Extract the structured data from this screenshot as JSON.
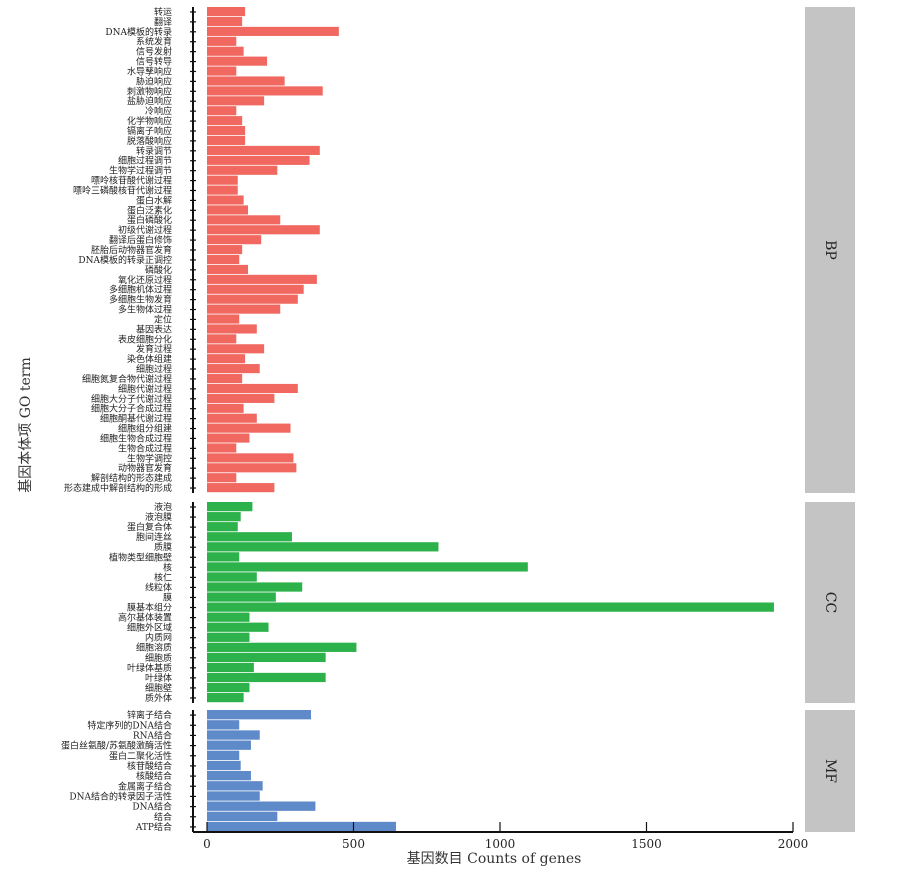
{
  "chart_data": {
    "type": "bar",
    "orientation": "horizontal",
    "xlabel": "基因数目 Counts of genes",
    "ylabel": "基因本体项 GO term",
    "xlim": [
      0,
      2000
    ],
    "xticks": [
      0,
      500,
      1000,
      1500,
      2000
    ],
    "grid": false,
    "legend": "none",
    "colors": {
      "BP": "#f06860",
      "CC": "#2db24b",
      "MF": "#5f8ac9",
      "strip": "#c4c4c4"
    },
    "facets": [
      {
        "name": "BP",
        "categories": [
          "转运",
          "翻译",
          "DNA模板的转录",
          "系统发育",
          "信号发射",
          "信号转导",
          "水导孳响应",
          "胁迫响应",
          "刺激物响应",
          "盐胁迫响应",
          "冷响应",
          "化学物响应",
          "镉离子响应",
          "脱落酸响应",
          "转录调节",
          "细胞过程调节",
          "生物学过程调节",
          "嘌呤核苷酸代谢过程",
          "嘌呤三磷酸核苷代谢过程",
          "蛋白水解",
          "蛋白泛素化",
          "蛋白磷酸化",
          "初级代谢过程",
          "翻译后蛋白修饰",
          "胚胎后动物器官发育",
          "DNA模板的转录正调控",
          "磷酸化",
          "氧化还原过程",
          "多细胞机体过程",
          "多细胞生物发育",
          "多生物体过程",
          "定位",
          "基因表达",
          "表皮细胞分化",
          "发育过程",
          "染色体组建",
          "细胞过程",
          "细胞氮复合物代谢过程",
          "细胞代谢过程",
          "细胞大分子代谢过程",
          "细胞大分子合成过程",
          "细胞酮基代谢过程",
          "细胞组分组建",
          "细胞生物合成过程",
          "生物合成过程",
          "生物学调控",
          "动物器官发育",
          "解剖结构的形态建成",
          "形态建成中解剖结构的形成"
        ],
        "values": [
          130,
          120,
          450,
          100,
          125,
          205,
          100,
          265,
          395,
          195,
          100,
          120,
          130,
          130,
          385,
          350,
          240,
          105,
          105,
          125,
          140,
          250,
          385,
          185,
          120,
          110,
          140,
          375,
          330,
          310,
          250,
          110,
          170,
          100,
          195,
          130,
          180,
          120,
          310,
          230,
          125,
          170,
          285,
          145,
          100,
          295,
          305,
          100,
          230
        ]
      },
      {
        "name": "CC",
        "categories": [
          "液泡",
          "液泡膜",
          "蛋白复合体",
          "胞间连丝",
          "质膜",
          "植物类型细胞壁",
          "核",
          "核仁",
          "线粒体",
          "膜",
          "膜基本组分",
          "高尔基体装置",
          "细胞外区域",
          "内质网",
          "细胞溶质",
          "细胞质",
          "叶绿体基质",
          "叶绿体",
          "细胞壁",
          "质外体"
        ],
        "values": [
          155,
          115,
          105,
          290,
          790,
          110,
          1095,
          170,
          325,
          235,
          1935,
          145,
          210,
          145,
          510,
          405,
          160,
          405,
          145,
          125
        ]
      },
      {
        "name": "MF",
        "categories": [
          "锌离子结合",
          "特定序列的DNA结合",
          "RNA结合",
          "蛋白丝氨酸/苏氨酸激酶活性",
          "蛋白二聚化活性",
          "核苷酸结合",
          "核酸结合",
          "金属离子结合",
          "DNA结合的转录因子活性",
          "DNA结合",
          "结合",
          "ATP结合"
        ],
        "values": [
          355,
          110,
          180,
          150,
          110,
          115,
          150,
          190,
          180,
          370,
          240,
          645
        ]
      }
    ]
  }
}
